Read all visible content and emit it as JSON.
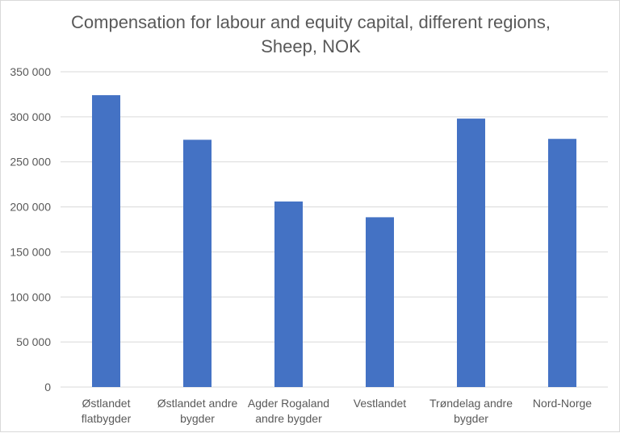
{
  "chart_data": {
    "type": "bar",
    "title_lines": [
      "Compensation for labour and equity capital, different regions,",
      "Sheep, NOK"
    ],
    "categories": [
      [
        "Østlandet",
        "flatbygder"
      ],
      [
        "Østlandet andre",
        "bygder"
      ],
      [
        "Agder Rogaland",
        "andre bygder"
      ],
      [
        "Vestlandet"
      ],
      [
        "Trøndelag andre",
        "bygder"
      ],
      [
        "Nord-Norge"
      ]
    ],
    "values": [
      324000,
      274500,
      206000,
      188500,
      298000,
      275500
    ],
    "ylim": [
      0,
      350000
    ],
    "yticks": [
      0,
      50000,
      100000,
      150000,
      200000,
      250000,
      300000,
      350000
    ],
    "ytick_labels": [
      "0",
      "50 000",
      "100 000",
      "150 000",
      "200 000",
      "250 000",
      "300 000",
      "350 000"
    ],
    "grid": true,
    "bar_color": "#4472C4",
    "grid_color": "#d9d9d9"
  }
}
